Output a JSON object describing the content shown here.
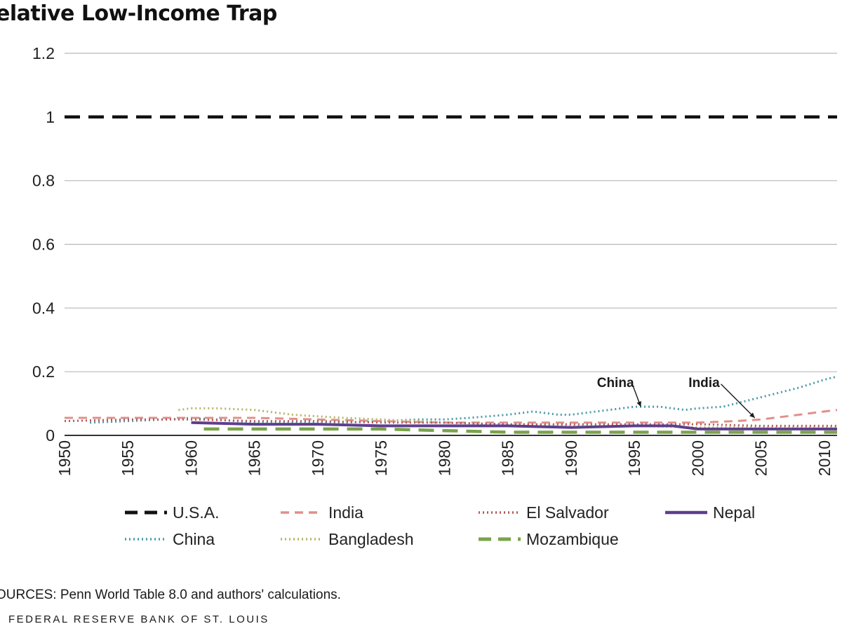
{
  "page": {
    "sources": "OURCES: Penn World Table 8.0 and authors' calculations.",
    "publisher": "FEDERAL RESERVE BANK OF ST. LOUIS"
  },
  "chart_data": {
    "type": "line",
    "title": "elative Low-Income Trap",
    "xlabel": "",
    "ylabel": "",
    "xlim": [
      1950,
      2011
    ],
    "ylim": [
      0,
      1.2
    ],
    "x_ticks": [
      1950,
      1955,
      1960,
      1965,
      1970,
      1975,
      1980,
      1985,
      1990,
      1995,
      2000,
      2005,
      2010
    ],
    "y_ticks": [
      0,
      0.2,
      0.4,
      0.6,
      0.8,
      1,
      1.2
    ],
    "y_tick_labels": [
      "0",
      "0.2",
      "0.4",
      "0.6",
      "0.8",
      "1",
      "1.2"
    ],
    "grid": true,
    "legend_position": "bottom",
    "series": [
      {
        "name": "U.S.A.",
        "color": "#111111",
        "style": "dashed-heavy",
        "x": [
          1950,
          2011
        ],
        "y": [
          1,
          1
        ]
      },
      {
        "name": "China",
        "color": "#4a9aa8",
        "style": "dotted",
        "x": [
          1952,
          1955,
          1958,
          1960,
          1962,
          1965,
          1968,
          1970,
          1972,
          1975,
          1978,
          1980,
          1982,
          1985,
          1987,
          1989,
          1990,
          1992,
          1995,
          1997,
          1999,
          2000,
          2002,
          2004,
          2006,
          2008,
          2010,
          2011
        ],
        "y": [
          0.04,
          0.045,
          0.05,
          0.055,
          0.05,
          0.04,
          0.04,
          0.04,
          0.04,
          0.045,
          0.05,
          0.05,
          0.055,
          0.065,
          0.075,
          0.065,
          0.065,
          0.075,
          0.09,
          0.09,
          0.08,
          0.085,
          0.09,
          0.11,
          0.13,
          0.15,
          0.175,
          0.185
        ]
      },
      {
        "name": "India",
        "color": "#e0908a",
        "style": "dashed",
        "x": [
          1950,
          1955,
          1960,
          1965,
          1970,
          1975,
          1980,
          1985,
          1990,
          1995,
          2000,
          2003,
          2005,
          2008,
          2010,
          2011
        ],
        "y": [
          0.055,
          0.055,
          0.055,
          0.055,
          0.05,
          0.045,
          0.04,
          0.04,
          0.04,
          0.04,
          0.04,
          0.045,
          0.05,
          0.065,
          0.075,
          0.08
        ]
      },
      {
        "name": "Bangladesh",
        "color": "#b7b56a",
        "style": "dotted",
        "x": [
          1959,
          1960,
          1962,
          1965,
          1968,
          1970,
          1972,
          1975,
          1980,
          1985,
          1990,
          1995,
          2000,
          2005,
          2010,
          2011
        ],
        "y": [
          0.08,
          0.085,
          0.085,
          0.08,
          0.065,
          0.06,
          0.055,
          0.05,
          0.04,
          0.035,
          0.03,
          0.03,
          0.025,
          0.025,
          0.025,
          0.025
        ]
      },
      {
        "name": "El Salvador",
        "color": "#b25a5a",
        "style": "dotted",
        "x": [
          1950,
          1955,
          1960,
          1965,
          1970,
          1975,
          1980,
          1985,
          1990,
          1995,
          2000,
          2005,
          2010,
          2011
        ],
        "y": [
          0.045,
          0.05,
          0.05,
          0.045,
          0.045,
          0.04,
          0.04,
          0.035,
          0.035,
          0.035,
          0.035,
          0.03,
          0.03,
          0.03
        ]
      },
      {
        "name": "Mozambique",
        "color": "#7aa34a",
        "style": "dashed-heavy",
        "x": [
          1961,
          1965,
          1970,
          1975,
          1980,
          1985,
          1990,
          1995,
          2000,
          2005,
          2010,
          2011
        ],
        "y": [
          0.02,
          0.02,
          0.02,
          0.02,
          0.015,
          0.01,
          0.01,
          0.01,
          0.01,
          0.01,
          0.01,
          0.01
        ]
      },
      {
        "name": "Nepal",
        "color": "#5d3f8c",
        "style": "solid",
        "x": [
          1960,
          1965,
          1970,
          1975,
          1980,
          1985,
          1990,
          1995,
          1998,
          2000,
          2002,
          2005,
          2010,
          2011
        ],
        "y": [
          0.04,
          0.035,
          0.035,
          0.03,
          0.03,
          0.03,
          0.025,
          0.03,
          0.03,
          0.02,
          0.02,
          0.02,
          0.02,
          0.02
        ]
      }
    ],
    "annotations": [
      {
        "text": "China",
        "x": 1993.5,
        "y": 0.17,
        "arrow_to_x": 1995.5,
        "arrow_to_y": 0.09
      },
      {
        "text": "India",
        "x": 2000.5,
        "y": 0.17,
        "arrow_to_x": 2004.5,
        "arrow_to_y": 0.055
      }
    ],
    "legend": [
      {
        "series": "U.S.A."
      },
      {
        "series": "India"
      },
      {
        "series": "El Salvador"
      },
      {
        "series": "Nepal"
      },
      {
        "series": "China"
      },
      {
        "series": "Bangladesh"
      },
      {
        "series": "Mozambique"
      }
    ]
  }
}
